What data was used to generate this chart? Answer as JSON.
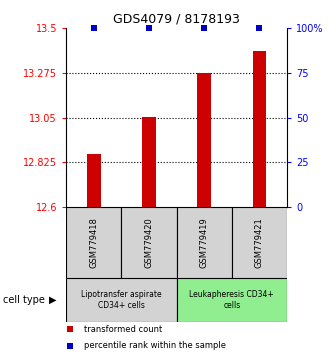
{
  "title": "GDS4079 / 8178193",
  "samples": [
    "GSM779418",
    "GSM779420",
    "GSM779419",
    "GSM779421"
  ],
  "red_values": [
    12.865,
    13.055,
    13.275,
    13.385
  ],
  "blue_values": [
    100,
    100,
    100,
    100
  ],
  "ylim_left": [
    12.6,
    13.5
  ],
  "ylim_right": [
    0,
    100
  ],
  "yticks_left": [
    12.6,
    12.825,
    13.05,
    13.275,
    13.5
  ],
  "ytick_labels_left": [
    "12.6",
    "12.825",
    "13.05",
    "13.275",
    "13.5"
  ],
  "yticks_right": [
    0,
    25,
    50,
    75,
    100
  ],
  "ytick_labels_right": [
    "0",
    "25",
    "50",
    "75",
    "100%"
  ],
  "hlines": [
    12.825,
    13.05,
    13.275
  ],
  "groups": [
    {
      "label": "Lipotransfer aspirate\nCD34+ cells",
      "indices": [
        0,
        1
      ],
      "color": "#d3d3d3"
    },
    {
      "label": "Leukapheresis CD34+\ncells",
      "indices": [
        2,
        3
      ],
      "color": "#90ee90"
    }
  ],
  "cell_type_label": "cell type",
  "legend": [
    {
      "color": "#cc0000",
      "label": "transformed count"
    },
    {
      "color": "#0000cc",
      "label": "percentile rank within the sample"
    }
  ],
  "bar_color": "#cc0000",
  "blue_marker_color": "#0000cc",
  "bar_width": 0.25,
  "background_color": "#ffffff"
}
